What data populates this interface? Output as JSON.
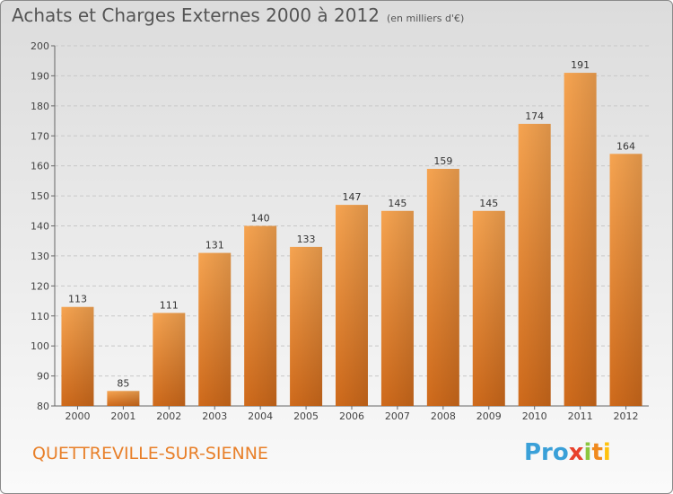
{
  "header": {
    "title": "Achats et Charges Externes 2000 à 2012",
    "unit": "(en milliers d'€)"
  },
  "commune": "QUETTREVILLE-SUR-SIENNE",
  "logo": {
    "letters": [
      "Pro",
      "x",
      "i",
      "t",
      "i"
    ]
  },
  "colors": {
    "bar_top": "#f6a451",
    "bar_bottom": "#cf6a1b",
    "accent": "#e8802a"
  },
  "chart_data": {
    "type": "bar",
    "title": "Achats et Charges Externes 2000 à 2012",
    "subtitle": "(en milliers d'€)",
    "categories": [
      "2000",
      "2001",
      "2002",
      "2003",
      "2004",
      "2005",
      "2006",
      "2007",
      "2008",
      "2009",
      "2010",
      "2011",
      "2012"
    ],
    "values": [
      113,
      85,
      111,
      131,
      140,
      133,
      147,
      145,
      159,
      145,
      174,
      191,
      164
    ],
    "ylim": [
      80,
      200
    ],
    "yticks": [
      80,
      90,
      100,
      110,
      120,
      130,
      140,
      150,
      160,
      170,
      180,
      190,
      200
    ],
    "grid": true,
    "legend": "none"
  }
}
